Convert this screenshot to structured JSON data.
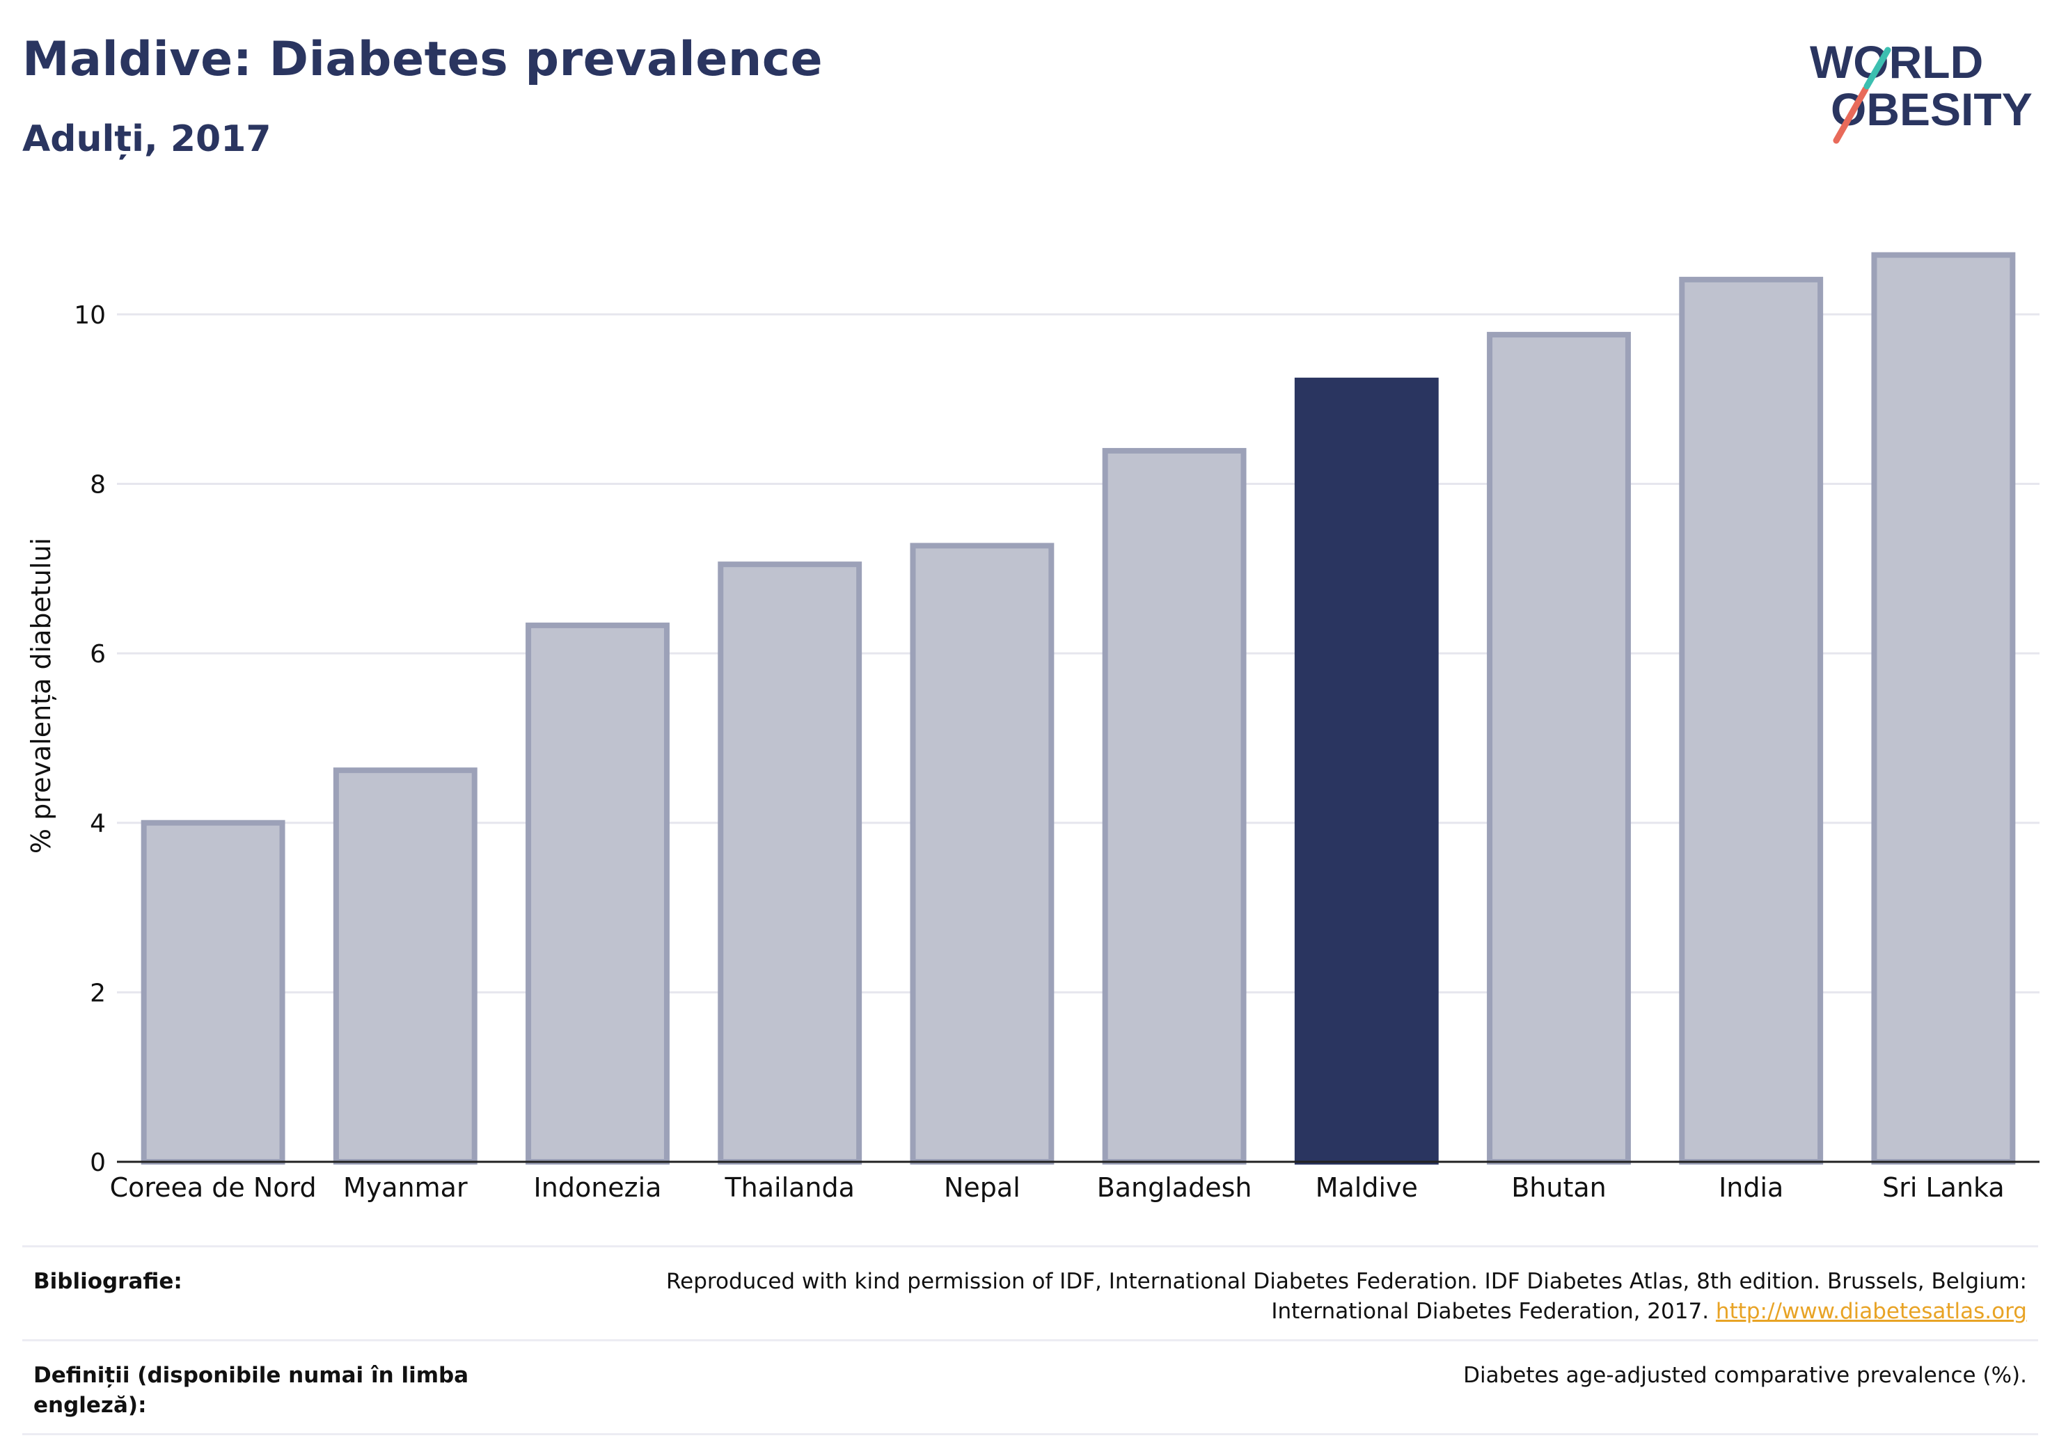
{
  "header": {
    "title": "Maldive: Diabetes prevalence",
    "subtitle": "Adulți, 2017"
  },
  "logo": {
    "line1": "WORLD",
    "line2": "OBESITY"
  },
  "chart_data": {
    "type": "bar",
    "categories": [
      "Coreea de Nord",
      "Myanmar",
      "Indonezia",
      "Thailanda",
      "Nepal",
      "Bangladesh",
      "Maldive",
      "Bhutan",
      "India",
      "Sri Lanka"
    ],
    "values": [
      4.0,
      4.62,
      6.33,
      7.05,
      7.27,
      8.39,
      9.22,
      9.76,
      10.41,
      10.7
    ],
    "highlight": "Maldive",
    "ylabel": "% prevalența diabetului",
    "ylim": [
      0,
      11
    ],
    "yticks": [
      0,
      2,
      4,
      6,
      8,
      10
    ],
    "grid": true,
    "colors": {
      "bar": "#bfc2cf",
      "bar_edge": "#9ca1b8",
      "highlight": "#2a3560"
    }
  },
  "footer": {
    "bibliography_label": "Bibliografie:",
    "bibliography_text": "Reproduced with kind permission of IDF, International Diabetes Federation. IDF Diabetes Atlas, 8th edition. Brussels, Belgium: International Diabetes Federation, 2017.",
    "bibliography_link": "http://www.diabetesatlas.org",
    "definitions_label": "Definiții (disponibile numai în limba engleză):",
    "definitions_text": "Diabetes age-adjusted comparative prevalence (%)."
  }
}
